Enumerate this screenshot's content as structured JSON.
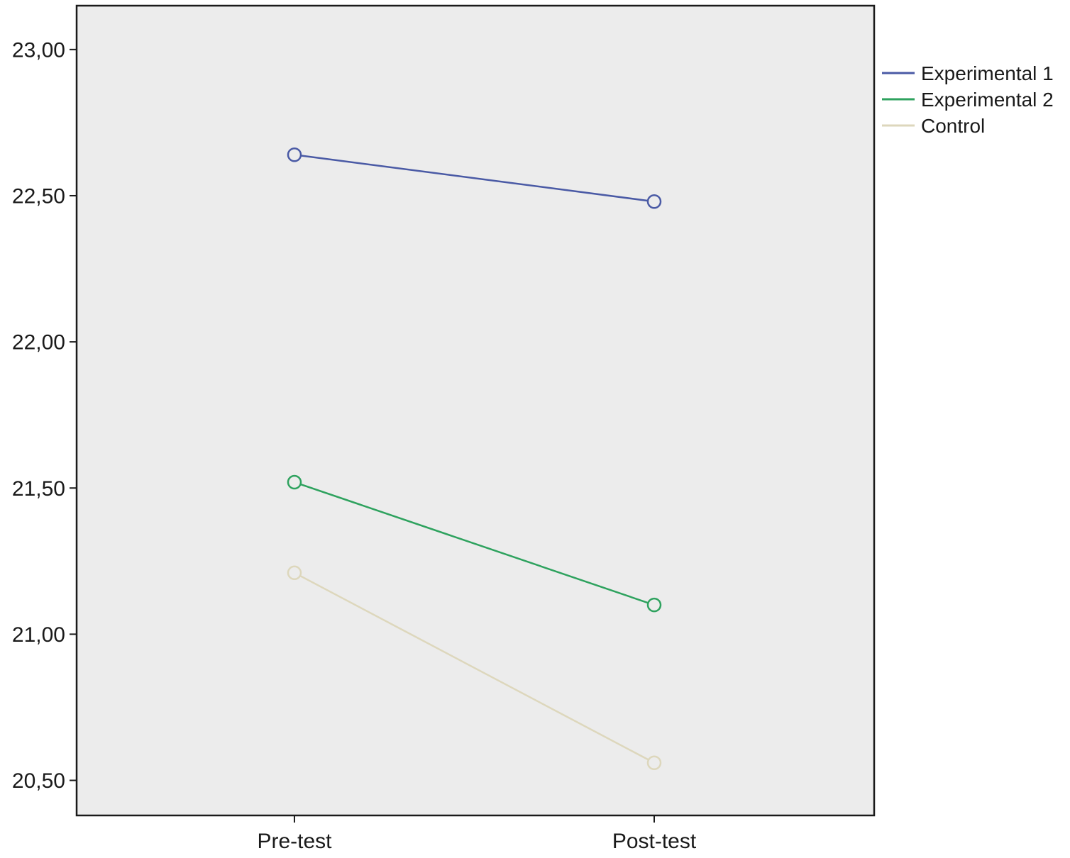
{
  "figure": {
    "kind": "spss-profile-plot",
    "plot_bg": "#ececec",
    "frame_color": "#1a1a1a",
    "text_color": "#1a1a1a"
  },
  "chart_data": {
    "type": "line",
    "title": "",
    "xlabel": "",
    "ylabel": "",
    "categories": [
      "Pre-test",
      "Post-test"
    ],
    "series": [
      {
        "name": "Experimental 1",
        "color": "#4a5aa5",
        "values": [
          22.64,
          22.48
        ]
      },
      {
        "name": "Experimental 2",
        "color": "#2ea25e",
        "values": [
          21.52,
          21.1
        ]
      },
      {
        "name": "Control",
        "color": "#ddd7bc",
        "values": [
          21.21,
          20.56
        ]
      }
    ],
    "yticks": {
      "values": [
        23.0,
        22.5,
        22.0,
        21.5,
        21.0,
        20.5
      ],
      "labels": [
        "23,00",
        "22,50",
        "22,00",
        "21,50",
        "21,00",
        "20,50"
      ]
    },
    "ylim": [
      20.38,
      23.15
    ],
    "grid": false,
    "legend_position": "top-right-outside",
    "marker": "open-circle"
  }
}
